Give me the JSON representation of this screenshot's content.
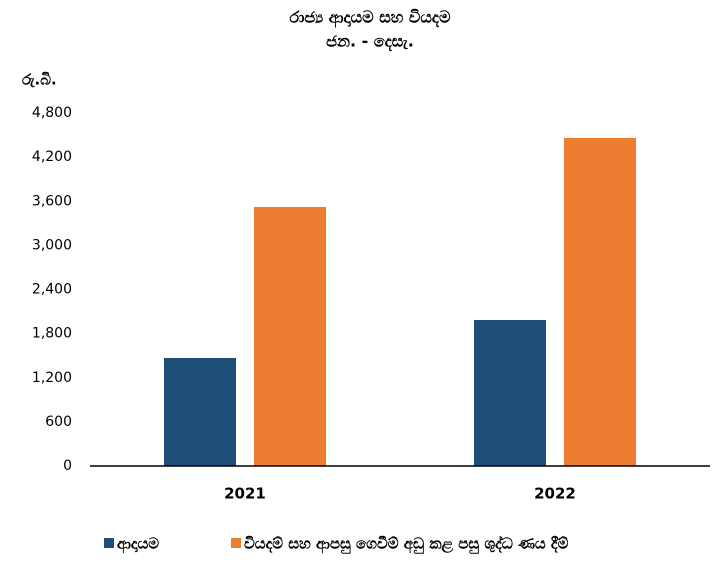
{
  "chart_data": {
    "type": "bar",
    "title": "රාජ්‍ය ආදායම සහ වියදම",
    "subtitle": "ජන. - දෙසැ.",
    "y_label": "රු.බි.",
    "categories": [
      "2021",
      "2022"
    ],
    "series": [
      {
        "name": "ආදායම",
        "color": "#1f4e79",
        "values": [
          1469,
          1985
        ]
      },
      {
        "name": "වියදම් සහ ආපසු ගෙවීම් අඩු කළ පසු ශුද්ධ ණය දීම්",
        "color": "#ed7d31",
        "values": [
          3522,
          4460
        ]
      }
    ],
    "ylim": [
      0,
      4800
    ],
    "yticks": [
      0,
      600,
      {
        "value": 1200,
        "label": "1,200"
      },
      {
        "value": 1800,
        "label": "1,800"
      },
      {
        "value": 2400,
        "label": "2,400"
      },
      {
        "value": 3000,
        "label": "3,000"
      },
      {
        "value": 3600,
        "label": "3,600"
      },
      {
        "value": 4200,
        "label": "4,200"
      },
      {
        "value": 4800,
        "label": "4,800"
      }
    ],
    "grid": false,
    "legend": "bottom"
  }
}
